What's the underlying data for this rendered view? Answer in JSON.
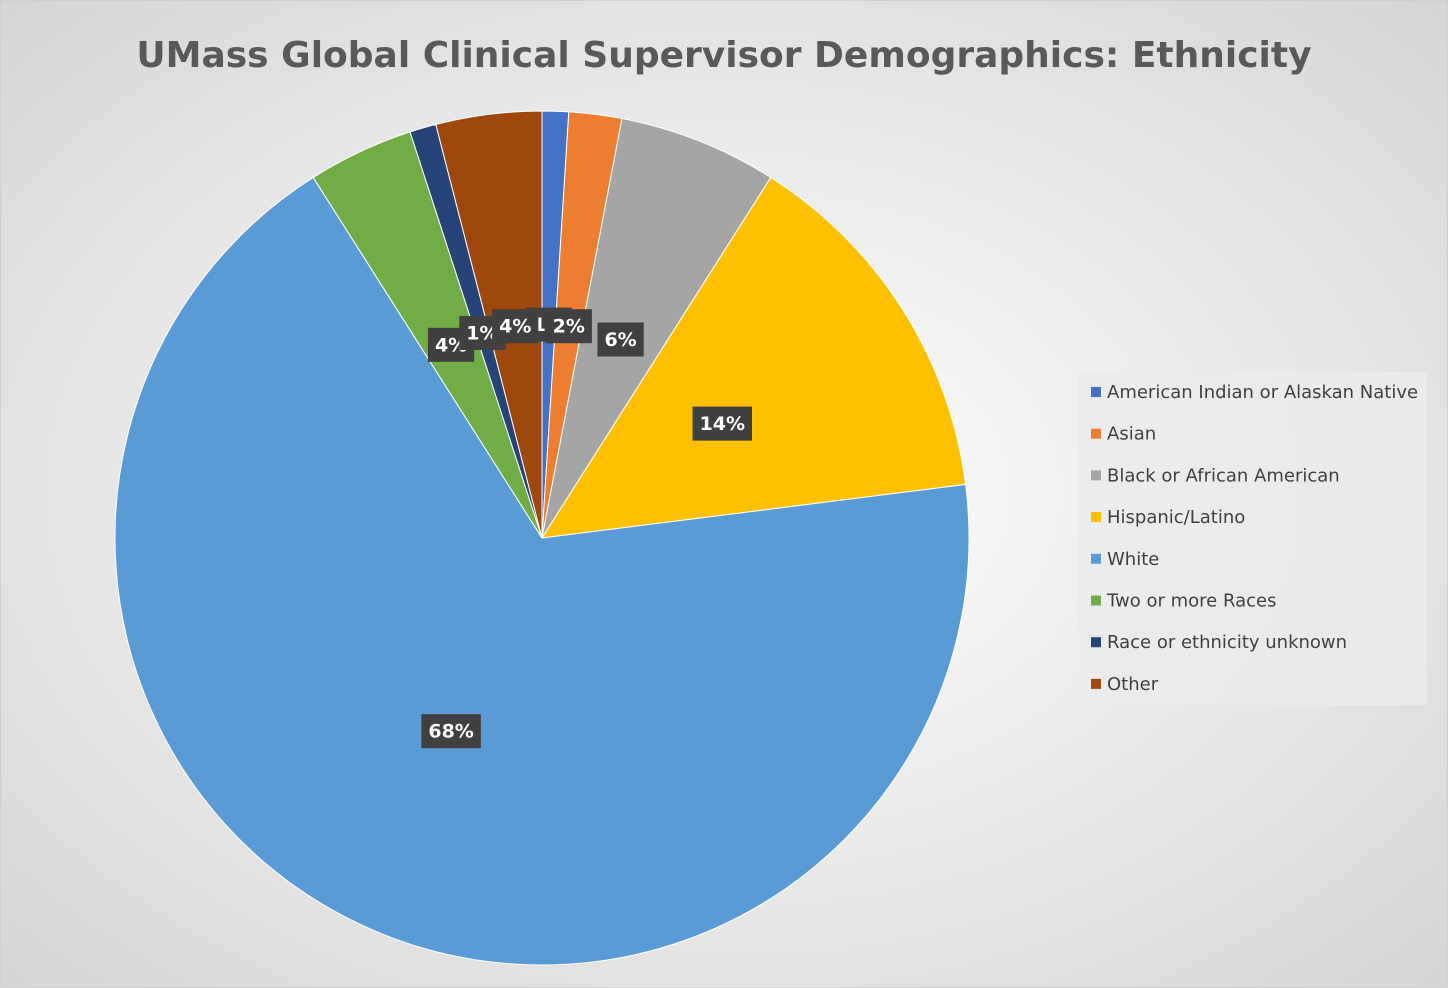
{
  "chart_data": {
    "type": "pie",
    "title": "UMass Global Clinical Supervisor Demographics: Ethnicity",
    "categories": [
      "American Indian or Alaskan Native",
      "Asian",
      "Black or African American",
      "Hispanic/Latino",
      "White",
      "Two or more Races",
      "Race or ethnicity unknown",
      "Other"
    ],
    "values": [
      1,
      2,
      6,
      14,
      68,
      4,
      1,
      4
    ],
    "value_labels": [
      "1%",
      "2%",
      "6%",
      "14%",
      "68%",
      "4%",
      "1%",
      "4%"
    ],
    "colors": [
      "#4472c4",
      "#ed7d31",
      "#a5a5a5",
      "#ffc000",
      "#5b9bd5",
      "#70ad47",
      "#264478",
      "#9e480e"
    ],
    "legend": "right"
  }
}
